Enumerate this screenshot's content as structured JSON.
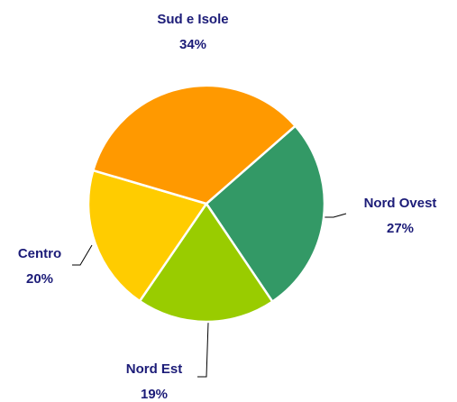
{
  "chart_data": {
    "type": "pie",
    "categories": [
      "Nord Ovest",
      "Nord Est",
      "Centro",
      "Sud e Isole"
    ],
    "values": [
      27,
      19,
      20,
      34
    ],
    "value_labels": [
      "27%",
      "19%",
      "20%",
      "34%"
    ],
    "colors": [
      "#339966",
      "#99cc00",
      "#ffcc00",
      "#ff9900"
    ]
  }
}
